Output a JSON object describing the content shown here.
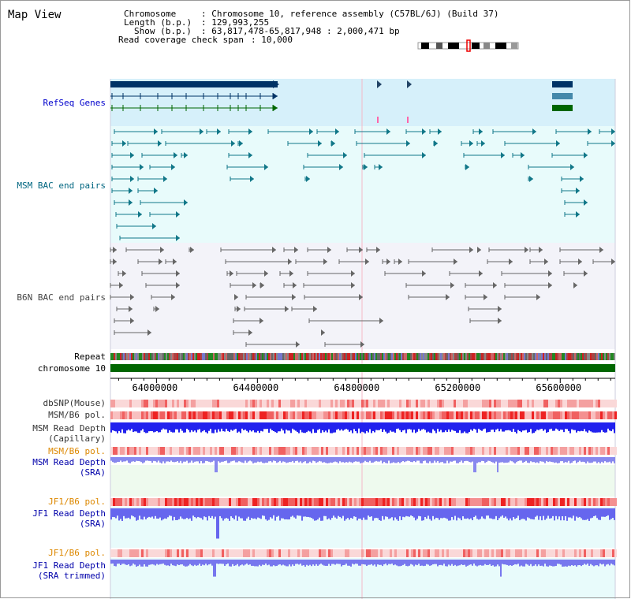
{
  "title": "Map View",
  "header": {
    "l1_label": "Chromosome   ",
    "l1_value": ": Chromosome 10, reference assembly (C57BL/6J) (Build 37)",
    "l2_label": "Length (b.p.)",
    "l2_value": ": 129,993,255",
    "l3_label": "Show (b.p.)",
    "l3_value": ": 63,817,478-65,817,948 : 2,000,471 bp",
    "l4_label": "Read coverage check span",
    "l4_value": ": 10,000"
  },
  "tracks": {
    "refseq": "RefSeq Genes",
    "msm_bac": "MSM BAC end pairs",
    "b6n_bac": "B6N BAC end pairs",
    "repeat": "Repeat",
    "chromosome": "chromosome 10",
    "dbsnp": "dbSNP(Mouse)",
    "msm_b6_pol": "MSM/B6 pol.",
    "msm_depth_cap_1": "MSM Read Depth",
    "msm_depth_cap_2": "(Capillary)",
    "msm_b6_pol2": "MSM/B6 pol.",
    "msm_depth_sra_1": "MSM Read Depth",
    "msm_depth_sra_2": "(SRA)",
    "jf1_pol": "JF1/B6 pol.",
    "jf1_depth_1": "JF1 Read Depth",
    "jf1_depth_2": "(SRA)",
    "jf1_pol2": "JF1/B6 pol.",
    "jf1_trim_1": "JF1 Read Depth",
    "jf1_trim_2": "(SRA trimmed)"
  },
  "axis": {
    "ticks": [
      {
        "value": 64000000,
        "label": "64000000"
      },
      {
        "value": 64400000,
        "label": "64400000"
      },
      {
        "value": 64800000,
        "label": "64800000"
      },
      {
        "value": 65200000,
        "label": "65200000"
      },
      {
        "value": 65600000,
        "label": "65600000"
      }
    ],
    "range": [
      63817478,
      65817948
    ]
  },
  "colors": {
    "refseq_bg": "#d6f0fa",
    "msm_bg": "#e8fbfb",
    "b6n_bg": "#f3f3f9",
    "refseq": "#003366",
    "msm": "#117788",
    "b6n": "#666666",
    "chrom": "#006600",
    "depth": "#2222ee",
    "depth_light": "#8888ee"
  }
}
